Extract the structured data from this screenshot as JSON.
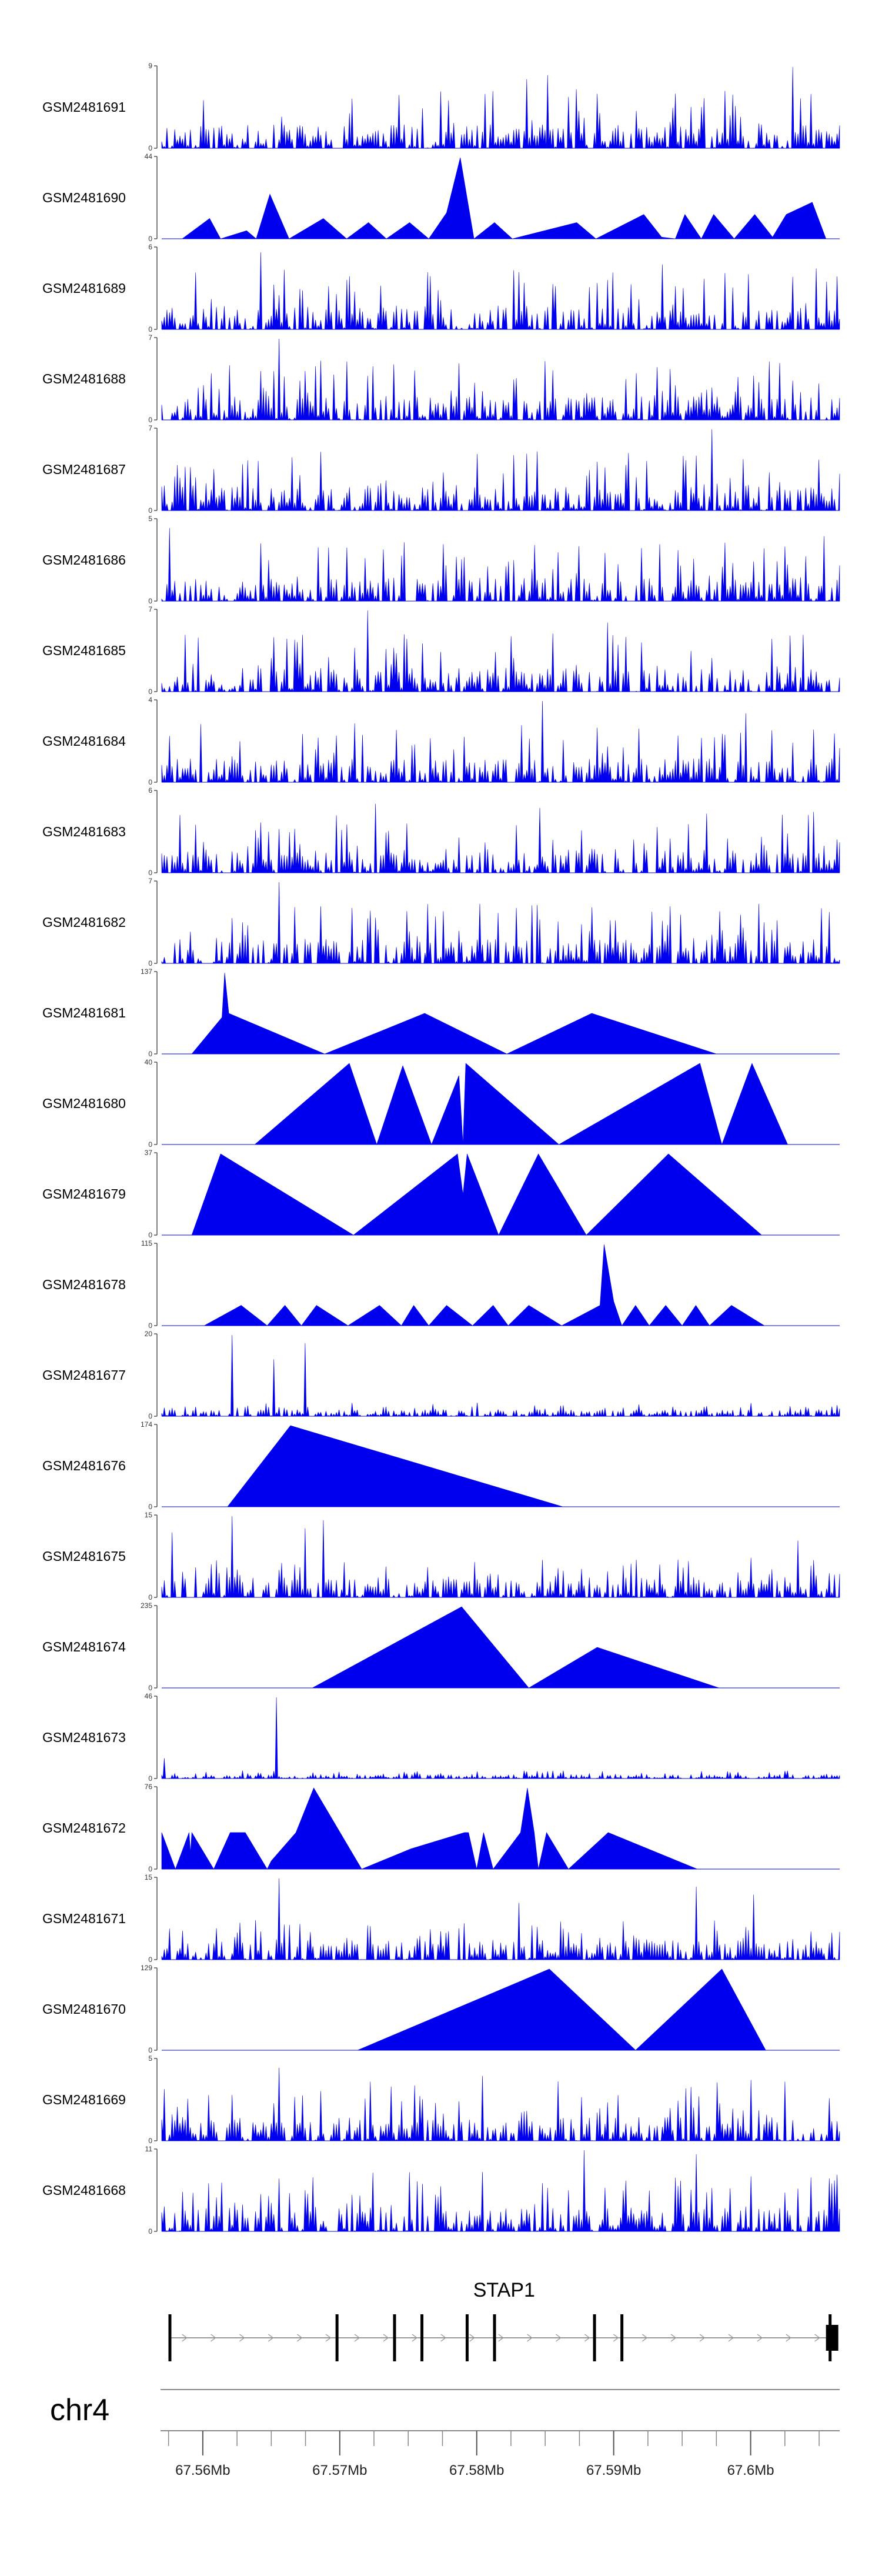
{
  "chart_data": {
    "type": "area",
    "title": "",
    "fill_color": "#0000EE",
    "x_range": [
      67.557,
      67.6065
    ],
    "tracks": [
      {
        "label": "GSM2481691",
        "ymax": 9,
        "pattern": "dense",
        "seed": 11,
        "peaks": [
          [
            67.5774,
            0.7
          ],
          [
            67.5852,
            0.9
          ],
          [
            67.6031,
            1.0
          ],
          [
            67.5836,
            0.85
          ]
        ]
      },
      {
        "label": "GSM2481690",
        "ymax": 44,
        "pattern": "sparse",
        "pts": [
          [
            67.5585,
            0
          ],
          [
            67.5605,
            0.25
          ],
          [
            67.5613,
            0
          ],
          [
            67.5632,
            0.1
          ],
          [
            67.5639,
            0
          ],
          [
            67.5649,
            0.55
          ],
          [
            67.5663,
            0
          ],
          [
            67.5688,
            0.25
          ],
          [
            67.5705,
            0
          ],
          [
            67.5721,
            0.2
          ],
          [
            67.5734,
            0
          ],
          [
            67.5751,
            0.2
          ],
          [
            67.5765,
            0
          ],
          [
            67.5778,
            0.32
          ],
          [
            67.5788,
            1.0
          ],
          [
            67.5798,
            0
          ],
          [
            67.5813,
            0.2
          ],
          [
            67.5826,
            0
          ],
          [
            67.5873,
            0.2
          ],
          [
            67.5887,
            0
          ],
          [
            67.5922,
            0.3
          ],
          [
            67.5935,
            0.02
          ],
          [
            67.5945,
            0
          ],
          [
            67.5952,
            0.3
          ],
          [
            67.5964,
            0
          ],
          [
            67.5973,
            0.3
          ],
          [
            67.5988,
            0
          ],
          [
            67.6003,
            0.3
          ],
          [
            67.6016,
            0.02
          ],
          [
            67.6026,
            0.3
          ],
          [
            67.6045,
            0.45
          ],
          [
            67.6055,
            0
          ]
        ]
      },
      {
        "label": "GSM2481689",
        "ymax": 6,
        "pattern": "dense",
        "seed": 23,
        "peaks": [
          [
            67.5643,
            0.95
          ],
          [
            67.5595,
            0.7
          ],
          [
            67.5935,
            0.8
          ],
          [
            67.6048,
            0.75
          ]
        ]
      },
      {
        "label": "GSM2481688",
        "ymax": 7,
        "pattern": "dense",
        "seed": 37,
        "peaks": [
          [
            67.5655,
            1.0
          ],
          [
            67.5651,
            0.6
          ]
        ]
      },
      {
        "label": "GSM2481687",
        "ymax": 7,
        "pattern": "dense",
        "seed": 41,
        "peaks": [
          [
            67.5971,
            1.0
          ],
          [
            67.5836,
            0.7
          ]
        ]
      },
      {
        "label": "GSM2481686",
        "ymax": 5,
        "pattern": "dense",
        "seed": 53,
        "peaks": [
          [
            67.5575,
            0.9
          ],
          [
            67.5934,
            0.7
          ],
          [
            67.6053,
            0.8
          ]
        ]
      },
      {
        "label": "GSM2481685",
        "ymax": 7,
        "pattern": "dense",
        "seed": 67,
        "peaks": [
          [
            67.5721,
            1.0
          ],
          [
            67.5588,
            0.7
          ],
          [
            67.5896,
            0.85
          ],
          [
            67.6038,
            0.7
          ]
        ]
      },
      {
        "label": "GSM2481684",
        "ymax": 4,
        "pattern": "dense",
        "seed": 71,
        "peaks": [
          [
            67.5848,
            1.0
          ],
          [
            67.5996,
            0.85
          ]
        ]
      },
      {
        "label": "GSM2481683",
        "ymax": 6,
        "pattern": "dense",
        "seed": 83,
        "peaks": [
          [
            67.5727,
            0.85
          ],
          [
            67.5847,
            0.8
          ],
          [
            67.6046,
            0.75
          ]
        ]
      },
      {
        "label": "GSM2481682",
        "ymax": 7,
        "pattern": "dense",
        "seed": 97,
        "peaks": [
          [
            67.5655,
            1.0
          ],
          [
            67.5948,
            0.6
          ]
        ]
      },
      {
        "label": "GSM2481681",
        "ymax": 137,
        "pattern": "sparse",
        "pts": [
          [
            67.5592,
            0
          ],
          [
            67.5614,
            0.45
          ],
          [
            67.5616,
            1.0
          ],
          [
            67.5619,
            0.5
          ],
          [
            67.5689,
            0
          ],
          [
            67.5762,
            0.5
          ],
          [
            67.5822,
            0
          ],
          [
            67.5884,
            0.5
          ],
          [
            67.5975,
            0
          ]
        ]
      },
      {
        "label": "GSM2481680",
        "ymax": 40,
        "pattern": "sparse",
        "pts": [
          [
            67.5638,
            0
          ],
          [
            67.5707,
            1.0
          ],
          [
            67.5727,
            0
          ],
          [
            67.5746,
            0.97
          ],
          [
            67.5767,
            0
          ],
          [
            67.5787,
            0.85
          ],
          [
            67.579,
            0
          ],
          [
            67.5792,
            1.0
          ],
          [
            67.586,
            0
          ],
          [
            67.5963,
            1.0
          ],
          [
            67.5979,
            0
          ],
          [
            67.6001,
            1.0
          ],
          [
            67.6027,
            0
          ]
        ]
      },
      {
        "label": "GSM2481679",
        "ymax": 37,
        "pattern": "sparse",
        "pts": [
          [
            67.5592,
            0
          ],
          [
            67.5613,
            1.0
          ],
          [
            67.571,
            0
          ],
          [
            67.5786,
            1.0
          ],
          [
            67.579,
            0.5
          ],
          [
            67.5793,
            1.0
          ],
          [
            67.5816,
            0
          ],
          [
            67.5845,
            1.0
          ],
          [
            67.588,
            0
          ],
          [
            67.594,
            1.0
          ],
          [
            67.6008,
            0
          ]
        ]
      },
      {
        "label": "GSM2481678",
        "ymax": 115,
        "pattern": "sparse",
        "pts": [
          [
            67.5601,
            0
          ],
          [
            67.5628,
            0.25
          ],
          [
            67.5647,
            0
          ],
          [
            67.566,
            0.25
          ],
          [
            67.5672,
            0
          ],
          [
            67.5683,
            0.25
          ],
          [
            67.5706,
            0
          ],
          [
            67.5729,
            0.25
          ],
          [
            67.5745,
            0
          ],
          [
            67.5754,
            0.25
          ],
          [
            67.5765,
            0
          ],
          [
            67.5778,
            0.25
          ],
          [
            67.5797,
            0
          ],
          [
            67.5812,
            0.25
          ],
          [
            67.5823,
            0
          ],
          [
            67.5838,
            0.25
          ],
          [
            67.5862,
            0
          ],
          [
            67.589,
            0.25
          ],
          [
            67.5893,
            1.0
          ],
          [
            67.59,
            0.3
          ],
          [
            67.5906,
            0
          ],
          [
            67.5916,
            0.25
          ],
          [
            67.5926,
            0
          ],
          [
            67.5938,
            0.25
          ],
          [
            67.595,
            0
          ],
          [
            67.596,
            0.25
          ],
          [
            67.597,
            0
          ],
          [
            67.5986,
            0.25
          ],
          [
            67.601,
            0
          ]
        ]
      },
      {
        "label": "GSM2481677",
        "ymax": 20,
        "pattern": "dense_low",
        "seed": 101,
        "level": 0.12,
        "peaks": [
          [
            67.5621,
            1.0
          ],
          [
            67.5651,
            0.7
          ],
          [
            67.5675,
            0.9
          ]
        ]
      },
      {
        "label": "GSM2481676",
        "ymax": 174,
        "pattern": "sparse",
        "pts": [
          [
            67.5618,
            0
          ],
          [
            67.5664,
            1.0
          ],
          [
            67.5863,
            0
          ]
        ]
      },
      {
        "label": "GSM2481675",
        "ymax": 15,
        "pattern": "dense_low",
        "seed": 113,
        "level": 0.35,
        "peaks": [
          [
            67.5621,
            1.0
          ],
          [
            67.5675,
            0.85
          ],
          [
            67.5688,
            0.95
          ],
          [
            67.6034,
            0.7
          ],
          [
            67.5578,
            0.8
          ]
        ]
      },
      {
        "label": "GSM2481674",
        "ymax": 235,
        "pattern": "sparse",
        "pts": [
          [
            67.568,
            0
          ],
          [
            67.5789,
            1.0
          ],
          [
            67.5838,
            0
          ],
          [
            67.5888,
            0.5
          ],
          [
            67.5977,
            0
          ]
        ]
      },
      {
        "label": "GSM2481673",
        "ymax": 46,
        "pattern": "dense_low",
        "seed": 127,
        "level": 0.07,
        "peaks": [
          [
            67.5653,
            1.0
          ],
          [
            67.5571,
            0.25
          ]
        ]
      },
      {
        "label": "GSM2481672",
        "ymax": 76,
        "pattern": "sparse",
        "pts": [
          [
            67.557,
            0
          ],
          [
            67.557,
            0.45
          ],
          [
            67.558,
            0
          ],
          [
            67.559,
            0.45
          ],
          [
            67.5591,
            0.2
          ],
          [
            67.5592,
            0.45
          ],
          [
            67.5608,
            0
          ],
          [
            67.562,
            0.45
          ],
          [
            67.5631,
            0.45
          ],
          [
            67.5647,
            0
          ],
          [
            67.565,
            0.1
          ],
          [
            67.5668,
            0.45
          ],
          [
            67.5681,
            1.0
          ],
          [
            67.5716,
            0
          ],
          [
            67.5752,
            0.25
          ],
          [
            67.5791,
            0.45
          ],
          [
            67.5794,
            0.45
          ],
          [
            67.58,
            0
          ],
          [
            67.5805,
            0.45
          ],
          [
            67.5812,
            0
          ],
          [
            67.5832,
            0.45
          ],
          [
            67.5837,
            1.0
          ],
          [
            67.5842,
            0.45
          ],
          [
            67.5845,
            0
          ],
          [
            67.5851,
            0.45
          ],
          [
            67.5867,
            0
          ],
          [
            67.5896,
            0.45
          ],
          [
            67.5961,
            0
          ]
        ]
      },
      {
        "label": "GSM2481671",
        "ymax": 15,
        "pattern": "dense_low",
        "seed": 131,
        "level": 0.35,
        "peaks": [
          [
            67.5655,
            1.0
          ],
          [
            67.583,
            0.7
          ],
          [
            67.596,
            0.9
          ],
          [
            67.6003,
            0.8
          ]
        ]
      },
      {
        "label": "GSM2481670",
        "ymax": 129,
        "pattern": "sparse",
        "pts": [
          [
            67.5713,
            0
          ],
          [
            67.5853,
            1.0
          ],
          [
            67.5916,
            0
          ],
          [
            67.5979,
            1.0
          ],
          [
            67.6011,
            0
          ]
        ]
      },
      {
        "label": "GSM2481669",
        "ymax": 5,
        "pattern": "dense",
        "seed": 139,
        "peaks": [
          [
            67.5655,
            0.9
          ],
          [
            67.5805,
            0.8
          ],
          [
            67.6001,
            0.75
          ]
        ]
      },
      {
        "label": "GSM2481668",
        "ymax": 11,
        "pattern": "dense",
        "seed": 149,
        "peaks": [
          [
            67.5879,
            1.0
          ],
          [
            67.596,
            0.95
          ],
          [
            67.5655,
            0.65
          ]
        ]
      }
    ],
    "gene": {
      "name": "STAP1",
      "start": 67.5575,
      "end": 67.6063,
      "exons": [
        67.5576,
        67.5698,
        67.574,
        67.576,
        67.5793,
        67.5813,
        67.5886,
        67.5906,
        67.6058
      ],
      "utr_end": [
        67.6055,
        67.6064
      ]
    },
    "chromosome": "chr4",
    "axis": {
      "ticks_major": [
        67.56,
        67.57,
        67.58,
        67.59,
        67.6
      ],
      "tick_labels": [
        "67.56Mb",
        "67.57Mb",
        "67.58Mb",
        "67.59Mb",
        "67.6Mb"
      ]
    }
  }
}
